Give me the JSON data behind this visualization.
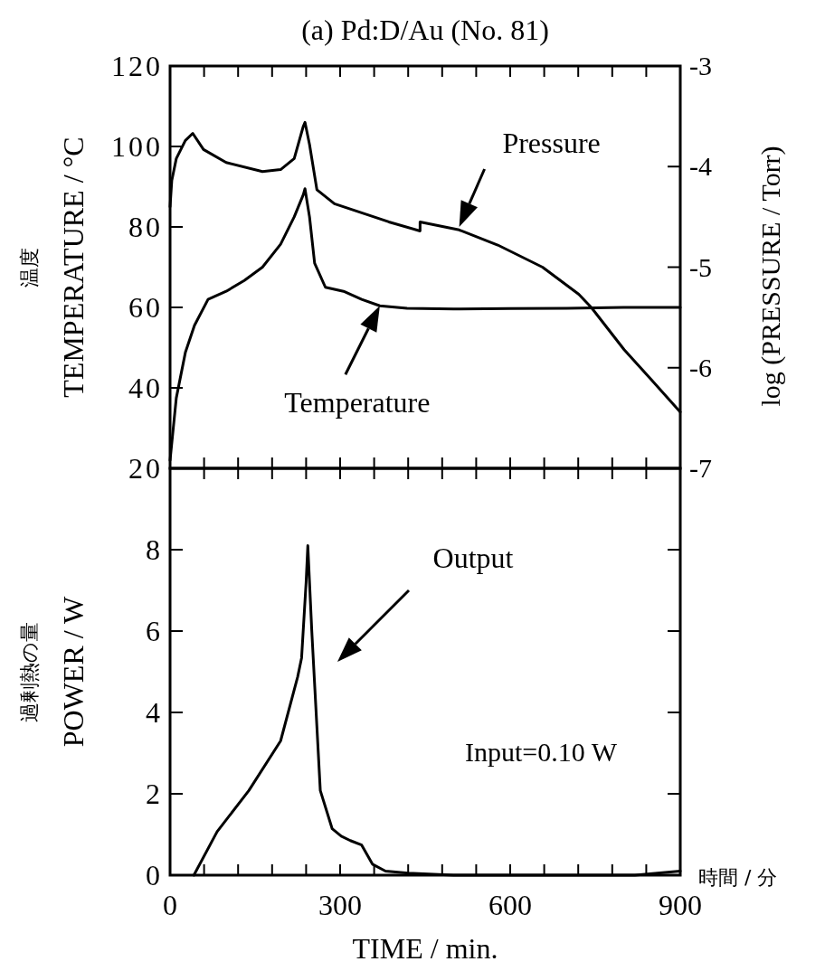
{
  "chart_data": [
    {
      "type": "line",
      "title": "(a) Pd:D/Au  (No. 81)",
      "ylabel": "温度\nTEMPERATURE / °C",
      "y2label": "log (PRESSURE / Torr)",
      "xlim": [
        0,
        900
      ],
      "xticks": [
        {
          "value": 0,
          "label": null
        },
        {
          "value": 60,
          "label": null
        },
        {
          "value": 120,
          "label": null
        },
        {
          "value": 180,
          "label": null
        },
        {
          "value": 240,
          "label": null
        },
        {
          "value": 300,
          "label": null
        },
        {
          "value": 360,
          "label": null
        },
        {
          "value": 420,
          "label": null
        },
        {
          "value": 480,
          "label": null
        },
        {
          "value": 540,
          "label": null
        },
        {
          "value": 600,
          "label": null
        },
        {
          "value": 660,
          "label": null
        },
        {
          "value": 720,
          "label": null
        },
        {
          "value": 780,
          "label": null
        },
        {
          "value": 840,
          "label": null
        },
        {
          "value": 900,
          "label": null
        }
      ],
      "ylim": [
        20,
        120
      ],
      "yticks": [
        20,
        40,
        60,
        80,
        100,
        120
      ],
      "y2lim": [
        -7,
        -3
      ],
      "y2ticks": [
        -7,
        -6,
        -5,
        -4,
        -3
      ],
      "tick_labels": "y",
      "series": [
        {
          "color": "#000000",
          "x": [
            0,
            11,
            27,
            43,
            67,
            99,
            131,
            163,
            195,
            219,
            235,
            238,
            246,
            255,
            274,
            306,
            338,
            370,
            418,
            500,
            600,
            700,
            800,
            900
          ],
          "values": [
            22,
            37.5,
            48.8,
            55.5,
            62,
            64,
            66.7,
            70,
            75.7,
            82.5,
            88,
            89.5,
            82.5,
            71,
            65,
            64,
            62,
            60.4,
            59.8,
            59.6,
            59.7,
            59.8,
            60,
            60
          ]
        },
        {
          "color": "#000000",
          "axis": "y2",
          "x": [
            0,
            3,
            11,
            27,
            40,
            59,
            99,
            163,
            195,
            219,
            235,
            238,
            246,
            259,
            290,
            338,
            386,
            441,
            441,
            510,
            578,
            657,
            721,
            743,
            801,
            849,
            900
          ],
          "values": [
            -4.4,
            -4.14,
            -3.92,
            -3.74,
            -3.67,
            -3.83,
            -3.96,
            -4.05,
            -4.03,
            -3.92,
            -3.6,
            -3.56,
            -3.78,
            -4.23,
            -4.37,
            -4.46,
            -4.55,
            -4.64,
            -4.55,
            -4.63,
            -4.78,
            -5.0,
            -5.27,
            -5.4,
            -5.82,
            -6.12,
            -6.44
          ]
        }
      ],
      "annotations": [
        {
          "text": "Pressure",
          "x": 510,
          "y": 80
        },
        {
          "text": "Temperature",
          "x": 370,
          "y": 60.4
        }
      ]
    },
    {
      "type": "line",
      "xlabel": "TIME / min.",
      "ylabel": "過剰熱の量\nPOWER / W",
      "xlim": [
        0,
        900
      ],
      "xticks": [
        0,
        {
          "value": 60,
          "label": null
        },
        {
          "value": 120,
          "label": null
        },
        {
          "value": 180,
          "label": null
        },
        {
          "value": 240,
          "label": null
        },
        300,
        {
          "value": 360,
          "label": null
        },
        {
          "value": 420,
          "label": null
        },
        {
          "value": 480,
          "label": null
        },
        {
          "value": 540,
          "label": null
        },
        600,
        {
          "value": 660,
          "label": null
        },
        {
          "value": 720,
          "label": null
        },
        {
          "value": 780,
          "label": null
        },
        {
          "value": 840,
          "label": null
        },
        900
      ],
      "ylim": [
        0,
        10
      ],
      "yticks": [
        0,
        2,
        4,
        6,
        8
      ],
      "series": [
        {
          "color": "#000000",
          "x": [
            42,
            83,
            139,
            195,
            225,
            232,
            240,
            243,
            250,
            265,
            286,
            302,
            318,
            338,
            357,
            380,
            420,
            500,
            700,
            820,
            900
          ],
          "values": [
            0,
            1.07,
            2.08,
            3.3,
            4.87,
            5.34,
            7.2,
            8.1,
            6,
            2.08,
            1.14,
            0.96,
            0.85,
            0.74,
            0.27,
            0.1,
            0.05,
            0,
            0,
            0,
            0.1
          ]
        }
      ],
      "annotations": [
        "Output",
        "Input=0.10 W",
        "時間 / 分"
      ]
    }
  ]
}
